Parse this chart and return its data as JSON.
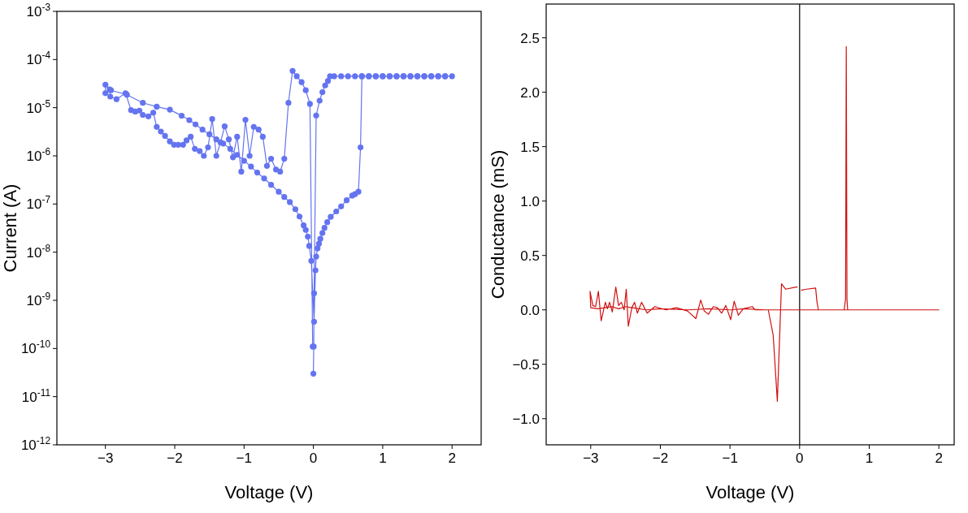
{
  "chart_data": [
    {
      "type": "line",
      "xlabel": "Voltage (V)",
      "ylabel": "Current (A)",
      "log": "y",
      "marker": "circle",
      "line_style": "solid",
      "xlim": [
        -3.7,
        2.42
      ],
      "xticks": [
        {
          "value": -3,
          "label": "−3"
        },
        {
          "value": -2,
          "label": "−2"
        },
        {
          "value": -1,
          "label": "−1"
        },
        0,
        1,
        2
      ],
      "ylim": [
        1e-12,
        0.001
      ],
      "yticks": [
        {
          "value": 1e-12,
          "label": "10$^{-12}$"
        },
        {
          "value": 1e-11,
          "label": "10$^{-11}$"
        },
        {
          "value": 1e-10,
          "label": "10$^{-10}$"
        },
        {
          "value": 1e-09,
          "label": "10$^{-9}$"
        },
        {
          "value": 1e-08,
          "label": "10$^{-8}$"
        },
        {
          "value": 1e-07,
          "label": "10$^{-7}$"
        },
        {
          "value": 1e-06,
          "label": "10$^{-6}$"
        },
        {
          "value": 1e-05,
          "label": "10$^{-5}$"
        },
        {
          "value": 0.0001,
          "label": "10$^{-4}$"
        },
        {
          "value": 0.001,
          "label": "10$^{-3}$"
        }
      ],
      "series": [
        {
          "color": "#6474f0",
          "x": [
            0.0,
            0.005,
            0.01,
            0.04,
            0.09,
            0.13,
            0.17,
            0.21,
            0.24,
            0.3,
            0.4,
            0.5,
            0.6,
            0.7,
            0.8,
            0.9,
            1.0,
            1.1,
            1.2,
            1.3,
            1.4,
            1.5,
            1.6,
            1.7,
            1.8,
            1.9,
            2.0,
            1.9,
            1.8,
            1.7,
            1.6,
            1.5,
            1.4,
            1.3,
            1.2,
            1.1,
            1.0,
            0.9,
            0.8,
            0.7,
            0.68,
            0.65,
            0.6,
            0.56,
            0.48,
            0.4,
            0.33,
            0.25,
            0.2,
            0.16,
            0.13,
            0.1,
            0.08,
            0.06,
            0.04,
            0.03,
            0.01,
            -0.03,
            -0.06,
            -0.08,
            -0.11,
            -0.14,
            -0.2,
            -0.26,
            -0.34,
            -0.42,
            -0.5,
            -0.61,
            -0.71,
            -0.81,
            -0.9,
            -1.0,
            -1.1,
            -1.2,
            -1.3,
            -1.4,
            -1.5,
            -1.6,
            -1.7,
            -1.79,
            -1.9,
            -2.07,
            -2.26,
            -2.46,
            -2.69,
            -2.92,
            -3.0,
            -3.0,
            -2.94,
            -2.93,
            -2.84,
            -2.71,
            -2.63,
            -2.57,
            -2.51,
            -2.46,
            -2.38,
            -2.31,
            -2.26,
            -2.2,
            -2.14,
            -2.07,
            -2.01,
            -1.95,
            -1.88,
            -1.83,
            -1.77,
            -1.71,
            -1.64,
            -1.58,
            -1.52,
            -1.46,
            -1.4,
            -1.34,
            -1.28,
            -1.22,
            -1.16,
            -1.1,
            -1.04,
            -0.98,
            -0.92,
            -0.86,
            -0.79,
            -0.73,
            -0.67,
            -0.61,
            -0.54,
            -0.48,
            -0.42,
            -0.36,
            -0.3,
            -0.24,
            -0.17,
            -0.11,
            -0.05,
            -0.01
          ],
          "values": [
            3e-11,
            1.1e-10,
            1.4e-09,
            6.9e-06,
            1.4e-05,
            2.1e-05,
            2.9e-05,
            3.6e-05,
            4.5e-05,
            4.5e-05,
            4.5e-05,
            4.5e-05,
            4.5e-05,
            4.5e-05,
            4.5e-05,
            4.5e-05,
            4.5e-05,
            4.5e-05,
            4.5e-05,
            4.5e-05,
            4.5e-05,
            4.5e-05,
            4.5e-05,
            4.5e-05,
            4.5e-05,
            4.5e-05,
            4.5e-05,
            4.5e-05,
            4.5e-05,
            4.5e-05,
            4.5e-05,
            4.5e-05,
            4.5e-05,
            4.5e-05,
            4.5e-05,
            4.5e-05,
            4.5e-05,
            4.5e-05,
            4.5e-05,
            4.5e-05,
            1.5e-06,
            1.8e-07,
            1.6e-07,
            1.5e-07,
            1.2e-07,
            8.9e-08,
            7e-08,
            5.4e-08,
            4.2e-08,
            3.2e-08,
            2.5e-08,
            1.9e-08,
            1.5e-08,
            1.2e-08,
            8.1e-09,
            4.2e-09,
            3.6e-10,
            6.6e-09,
            1.35e-08,
            2.1e-08,
            2.9e-08,
            3.6e-08,
            5.5e-08,
            7.8e-08,
            1.1e-07,
            1.4e-07,
            1.8e-07,
            2.5e-07,
            3.4e-07,
            4.5e-07,
            6e-07,
            7.9e-07,
            1.05e-06,
            1.4e-06,
            1.8e-06,
            2.2e-06,
            2.8e-06,
            3.5e-06,
            4.5e-06,
            5.5e-06,
            6.8e-06,
            9.1e-06,
            1.05e-05,
            1.26e-05,
            1.86e-05,
            2.3e-05,
            2e-05,
            3e-05,
            2.4e-05,
            1.7e-05,
            1.5e-05,
            2e-05,
            8.9e-06,
            8.3e-06,
            8.7e-06,
            7.1e-06,
            6.6e-06,
            7.9e-06,
            4e-06,
            3.2e-06,
            2.6e-06,
            2e-06,
            1.7e-06,
            1.7e-06,
            1.7e-06,
            2.1e-06,
            2.5e-06,
            1.4e-06,
            1.26e-06,
            1e-06,
            1.5e-06,
            5.8e-06,
            1e-06,
            1.9e-06,
            4.1e-06,
            2.2e-06,
            9.3e-07,
            2.5e-06,
            4.7e-07,
            5.6e-06,
            1e-06,
            4e-06,
            3.5e-06,
            2.5e-06,
            6.2e-07,
            8.7e-07,
            5.2e-07,
            4.7e-07,
            8.7e-07,
            1.26e-05,
            5.8e-05,
            4.5e-05,
            3.4e-05,
            2.3e-05,
            1.2e-05,
            1.1e-10
          ]
        }
      ]
    },
    {
      "type": "line",
      "xlabel": "Voltage (V)",
      "ylabel": "Conductance (mS)",
      "marker": "none",
      "line_style": "solid",
      "xlim": [
        -3.64,
        2.22
      ],
      "xticks": [
        {
          "value": -3,
          "label": "−3"
        },
        {
          "value": -2,
          "label": "−2"
        },
        {
          "value": -1,
          "label": "−1"
        },
        0,
        1,
        2
      ],
      "ylim": [
        -1.24,
        2.81
      ],
      "yticks": [
        {
          "value": -1,
          "label": "−1.0"
        },
        {
          "value": -0.5,
          "label": "−0.5"
        },
        {
          "value": 0,
          "label": "0.0"
        },
        {
          "value": 0.5,
          "label": "0.5"
        },
        {
          "value": 1,
          "label": "1.0"
        },
        {
          "value": 1.5,
          "label": "1.5"
        },
        {
          "value": 2,
          "label": "2.0"
        },
        {
          "value": 2.5,
          "label": "2.5"
        }
      ],
      "ref_lines": [
        {
          "axis": "x",
          "value": 0,
          "color": "#000000"
        }
      ],
      "series": [
        {
          "color": "#d01010",
          "x": [
            0.02,
            0.1,
            0.23,
            0.25,
            0.27,
            0.64,
            0.66,
            0.67,
            0.68,
            0.69,
            2.0,
            0.7,
            0.0,
            -0.5,
            -0.8,
            -1.0,
            -1.3,
            -1.6,
            -2.0,
            -2.2,
            -2.4,
            -2.5,
            -2.6,
            -2.7,
            -2.8,
            -2.9,
            -3.0,
            -3.01,
            -2.97,
            -2.93,
            -2.89,
            -2.85,
            -2.79,
            -2.76,
            -2.73,
            -2.69,
            -2.64,
            -2.6,
            -2.56,
            -2.52,
            -2.49,
            -2.46,
            -2.41,
            -2.37,
            -2.33,
            -2.27,
            -2.19,
            -2.08,
            -1.92,
            -1.77,
            -1.61,
            -1.49,
            -1.42,
            -1.37,
            -1.31,
            -1.24,
            -1.18,
            -1.12,
            -1.06,
            -0.99,
            -0.94,
            -0.88,
            -0.81,
            -0.68,
            -0.64,
            -0.56,
            -0.45,
            -0.38,
            -0.32,
            -0.26,
            -0.2,
            -0.05,
            -0.03
          ],
          "values": [
            0.18,
            0.19,
            0.2,
            0.07,
            0.0,
            0.0,
            0.1,
            2.42,
            0.1,
            0.0,
            0.0,
            0.0,
            0.0,
            0.0,
            0.01,
            0.0,
            0.01,
            0.0,
            0.01,
            0.0,
            0.02,
            0.03,
            0.01,
            0.03,
            0.02,
            0.01,
            0.02,
            0.17,
            0.04,
            0.03,
            0.17,
            -0.1,
            0.07,
            0.01,
            0.07,
            -0.02,
            0.21,
            0.04,
            0.07,
            0.0,
            0.19,
            -0.15,
            0.02,
            0.07,
            -0.03,
            0.07,
            -0.03,
            0.03,
            0.0,
            0.02,
            -0.01,
            -0.08,
            0.09,
            -0.01,
            -0.04,
            0.03,
            0.02,
            -0.03,
            0.04,
            -0.09,
            0.08,
            -0.05,
            0.01,
            0.03,
            0.0,
            0.0,
            0.0,
            -0.23,
            -0.84,
            0.24,
            0.19,
            0.21,
            0.21
          ]
        }
      ]
    }
  ]
}
